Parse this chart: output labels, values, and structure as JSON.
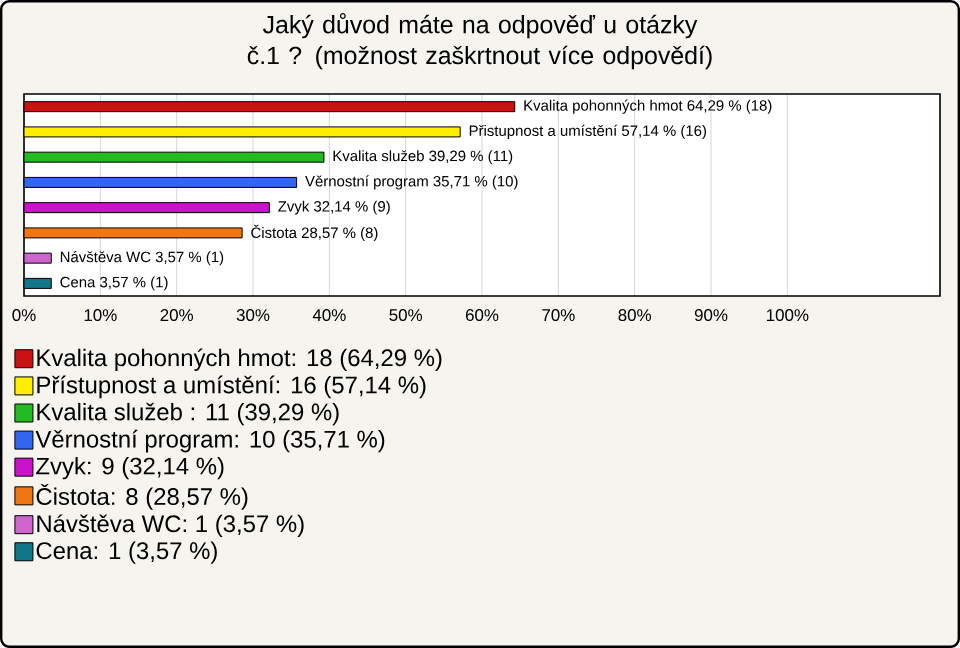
{
  "chart_data": {
    "type": "bar",
    "orientation": "horizontal",
    "title": "Jaký důvod máte na odpověď u otázky č.1 ? (možnost zaškrtnout více odpovědí)",
    "categories": [
      null,
      null,
      null,
      null,
      null,
      null,
      null,
      null
    ],
    "series": [
      {
        "name": "Kvalita pohonných hmot: 18 (64,29 %)",
        "color": "#cc1111",
        "values": [
          64.29,
          null,
          null,
          null,
          null,
          null,
          null,
          null
        ],
        "value_labels": [
          "Kvalita pohonných hmot 64,29 % (18)",
          null,
          null,
          null,
          null,
          null,
          null,
          null
        ]
      },
      {
        "name": "Přístupnost a umístění: 16 (57,14 %)",
        "color": "#ffee00",
        "values": [
          null,
          57.14,
          null,
          null,
          null,
          null,
          null,
          null
        ],
        "value_labels": [
          null,
          "Přistupnost a umístění 57,14 % (16)",
          null,
          null,
          null,
          null,
          null,
          null
        ]
      },
      {
        "name": "Kvalita služeb : 11 (39,29 %)",
        "color": "#22bb22",
        "values": [
          null,
          null,
          39.29,
          null,
          null,
          null,
          null,
          null
        ],
        "value_labels": [
          null,
          null,
          "Kvalita služeb  39,29 % (11)",
          null,
          null,
          null,
          null,
          null
        ]
      },
      {
        "name": "Věrnostní program: 10 (35,71 %)",
        "color": "#3366ee",
        "values": [
          null,
          null,
          null,
          35.71,
          null,
          null,
          null,
          null
        ],
        "value_labels": [
          null,
          null,
          null,
          "Věrnostní program 35,71 % (10)",
          null,
          null,
          null,
          null
        ]
      },
      {
        "name": "Zvyk: 9 (32,14 %)",
        "color": "#cc11cc",
        "values": [
          null,
          null,
          null,
          null,
          32.14,
          null,
          null,
          null
        ],
        "value_labels": [
          null,
          null,
          null,
          null,
          "Zvyk 32,14 % (9)",
          null,
          null,
          null
        ]
      },
      {
        "name": "Čistota: 8 (28,57 %)",
        "color": "#ee7711",
        "values": [
          null,
          null,
          null,
          null,
          null,
          28.57,
          null,
          null
        ],
        "value_labels": [
          null,
          null,
          null,
          null,
          null,
          "Čistota 28,57 % (8)",
          null,
          null
        ]
      },
      {
        "name": "Návštěva WC: 1 (3,57 %)",
        "color": "#cc66cc",
        "values": [
          null,
          null,
          null,
          null,
          null,
          null,
          3.57,
          null
        ],
        "value_labels": [
          null,
          null,
          null,
          null,
          null,
          null,
          "Návštěva WC 3,57 % (1)",
          null
        ]
      },
      {
        "name": "Cena: 1 (3,57 %)",
        "color": "#117788",
        "values": [
          null,
          null,
          null,
          null,
          null,
          null,
          null,
          3.57
        ],
        "value_labels": [
          null,
          null,
          null,
          null,
          null,
          null,
          null,
          "Cena 3,57 % (1)"
        ]
      }
    ],
    "xlim": [
      0,
      120
    ],
    "xticks": [
      {
        "value": 0,
        "label": "0%"
      },
      {
        "value": 10,
        "label": "10%"
      },
      {
        "value": 20,
        "label": "20%"
      },
      {
        "value": 30,
        "label": "30%"
      },
      {
        "value": 40,
        "label": "40%"
      },
      {
        "value": 50,
        "label": "50%"
      },
      {
        "value": 60,
        "label": "60%"
      },
      {
        "value": 70,
        "label": "70%"
      },
      {
        "value": 80,
        "label": "80%"
      },
      {
        "value": 90,
        "label": "90%"
      },
      {
        "value": 100,
        "label": "100%"
      }
    ],
    "grid": "x",
    "legend": "bottom"
  }
}
